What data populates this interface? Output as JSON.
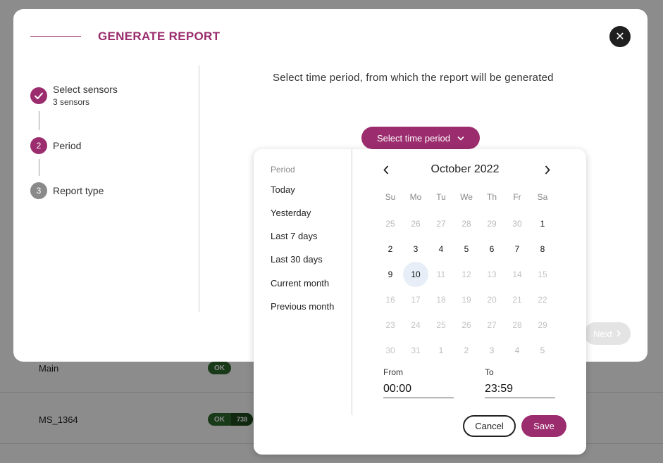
{
  "background": {
    "rows": [
      {
        "name": "Main",
        "badge": "OK",
        "count": ""
      },
      {
        "name": "MS_1364",
        "badge": "OK",
        "count": "738"
      }
    ]
  },
  "modal": {
    "title": "GENERATE REPORT",
    "close_label": "✕",
    "instruction": "Select time period, from which the report will be generated",
    "next_label": "Next",
    "steps": [
      {
        "number": "✓",
        "label": "Select sensors",
        "sub": "3 sensors",
        "state": "done"
      },
      {
        "number": "2",
        "label": "Period",
        "sub": "",
        "state": "active"
      },
      {
        "number": "3",
        "label": "Report type",
        "sub": "",
        "state": "pending"
      }
    ]
  },
  "period_button": {
    "label": "Select time period"
  },
  "picker": {
    "presets_heading": "Period",
    "presets": [
      "Today",
      "Yesterday",
      "Last 7 days",
      "Last 30 days",
      "Current month",
      "Previous month"
    ],
    "month_label": "October 2022",
    "weekdays": [
      "Su",
      "Mo",
      "Tu",
      "We",
      "Th",
      "Fr",
      "Sa"
    ],
    "weeks": [
      [
        "25",
        "26",
        "27",
        "28",
        "29",
        "30",
        "1"
      ],
      [
        "2",
        "3",
        "4",
        "5",
        "6",
        "7",
        "8"
      ],
      [
        "9",
        "10",
        "11",
        "12",
        "13",
        "14",
        "15"
      ],
      [
        "16",
        "17",
        "18",
        "19",
        "20",
        "21",
        "22"
      ],
      [
        "23",
        "24",
        "25",
        "26",
        "27",
        "28",
        "29"
      ],
      [
        "30",
        "31",
        "1",
        "2",
        "3",
        "4",
        "5"
      ]
    ],
    "today": "10",
    "from_label": "From",
    "from_value": "00:00",
    "to_label": "To",
    "to_value": "23:59",
    "cancel_label": "Cancel",
    "save_label": "Save"
  },
  "colors": {
    "accent": "#9b2c6e",
    "done": "#9b2c6e",
    "pending": "#8a8a8a",
    "ok_badge": "#2f6b2f"
  }
}
